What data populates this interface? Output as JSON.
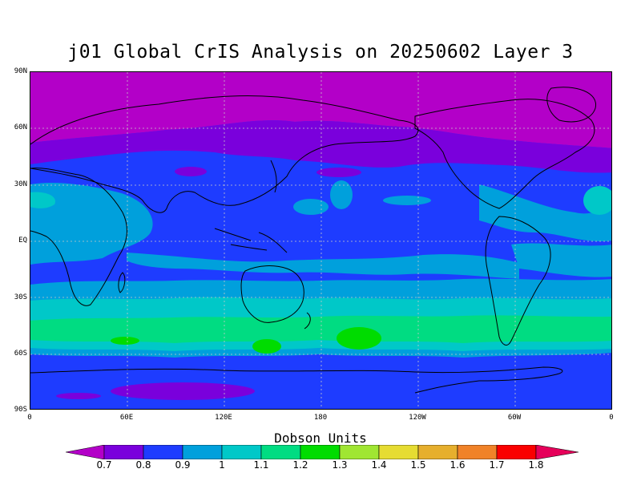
{
  "title": "j01 Global CrIS Analysis on 20250602 Layer 3",
  "axes": {
    "lat_labels": [
      "90N",
      "60N",
      "30N",
      "EQ",
      "30S",
      "60S",
      "90S"
    ],
    "lon_labels": [
      "0",
      "60E",
      "120E",
      "180",
      "120W",
      "60W",
      "0"
    ]
  },
  "colorbar": {
    "units_label": "Dobson Units",
    "tick_labels": [
      "0.7",
      "0.8",
      "0.9",
      "1",
      "1.1",
      "1.2",
      "1.3",
      "1.4",
      "1.5",
      "1.6",
      "1.7",
      "1.8"
    ],
    "colors": [
      "#b300c8",
      "#7a00dc",
      "#1e3cff",
      "#00a0dc",
      "#00c8c8",
      "#00dc82",
      "#00dc00",
      "#a0e632",
      "#e6dc32",
      "#e6af2d",
      "#f08228",
      "#fa0000",
      "#e6005a"
    ]
  },
  "map": {
    "background": "#1e3cff",
    "coastline_color": "#000000",
    "grid": true
  }
}
